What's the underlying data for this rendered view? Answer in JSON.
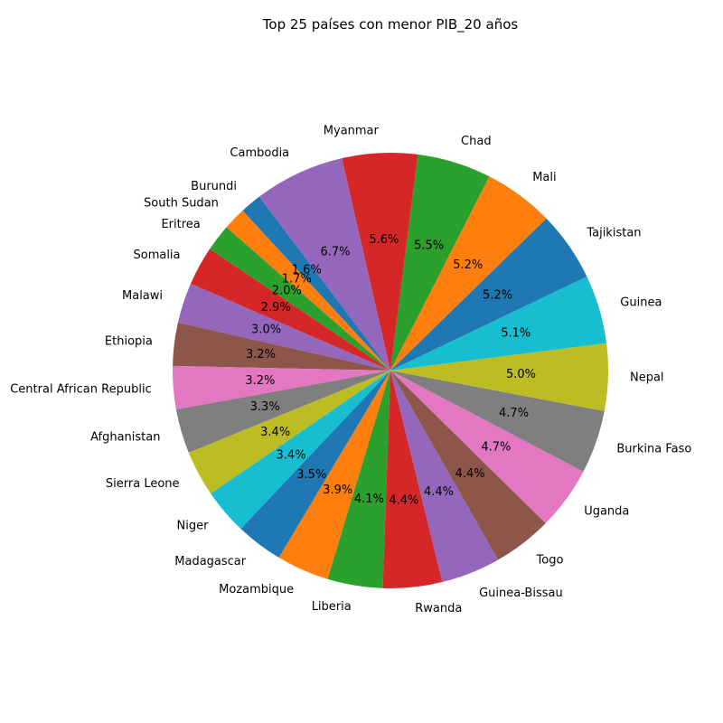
{
  "chart_data": {
    "type": "pie",
    "title": "Top 25 países con menor PIB_20 años",
    "start": "Burundi at top-left, counter-clockwise",
    "slices": [
      {
        "label": "Burundi",
        "pct": "1.6%",
        "value": 1.6,
        "color": "#1f77b4"
      },
      {
        "label": "South Sudan",
        "pct": "1.7%",
        "value": 1.7,
        "color": "#ff7f0e"
      },
      {
        "label": "Eritrea",
        "pct": "2.0%",
        "value": 2.0,
        "color": "#2ca02c"
      },
      {
        "label": "Somalia",
        "pct": "2.9%",
        "value": 2.9,
        "color": "#d62728"
      },
      {
        "label": "Malawi",
        "pct": "3.0%",
        "value": 3.0,
        "color": "#9467bd"
      },
      {
        "label": "Ethiopia",
        "pct": "3.2%",
        "value": 3.2,
        "color": "#8c564b"
      },
      {
        "label": "Central African Republic",
        "pct": "3.2%",
        "value": 3.2,
        "color": "#e377c2"
      },
      {
        "label": "Afghanistan",
        "pct": "3.3%",
        "value": 3.3,
        "color": "#7f7f7f"
      },
      {
        "label": "Sierra Leone",
        "pct": "3.4%",
        "value": 3.4,
        "color": "#bcbd22"
      },
      {
        "label": "Niger",
        "pct": "3.4%",
        "value": 3.4,
        "color": "#17becf"
      },
      {
        "label": "Madagascar",
        "pct": "3.5%",
        "value": 3.5,
        "color": "#1f77b4"
      },
      {
        "label": "Mozambique",
        "pct": "3.9%",
        "value": 3.9,
        "color": "#ff7f0e"
      },
      {
        "label": "Liberia",
        "pct": "4.1%",
        "value": 4.1,
        "color": "#2ca02c"
      },
      {
        "label": "Rwanda",
        "pct": "4.4%",
        "value": 4.4,
        "color": "#d62728"
      },
      {
        "label": "Guinea-Bissau",
        "pct": "4.4%",
        "value": 4.4,
        "color": "#9467bd"
      },
      {
        "label": "Togo",
        "pct": "4.4%",
        "value": 4.4,
        "color": "#8c564b"
      },
      {
        "label": "Uganda",
        "pct": "4.7%",
        "value": 4.7,
        "color": "#e377c2"
      },
      {
        "label": "Burkina Faso",
        "pct": "4.7%",
        "value": 4.7,
        "color": "#7f7f7f"
      },
      {
        "label": "Nepal",
        "pct": "5.0%",
        "value": 5.0,
        "color": "#bcbd22"
      },
      {
        "label": "Guinea",
        "pct": "5.1%",
        "value": 5.1,
        "color": "#17becf"
      },
      {
        "label": "Tajikistan",
        "pct": "5.2%",
        "value": 5.2,
        "color": "#1f77b4"
      },
      {
        "label": "Mali",
        "pct": "5.2%",
        "value": 5.2,
        "color": "#ff7f0e"
      },
      {
        "label": "Chad",
        "pct": "5.5%",
        "value": 5.5,
        "color": "#2ca02c"
      },
      {
        "label": "Myanmar",
        "pct": "5.6%",
        "value": 5.6,
        "color": "#d62728"
      },
      {
        "label": "Cambodia",
        "pct": "6.7%",
        "value": 6.7,
        "color": "#9467bd"
      }
    ]
  }
}
